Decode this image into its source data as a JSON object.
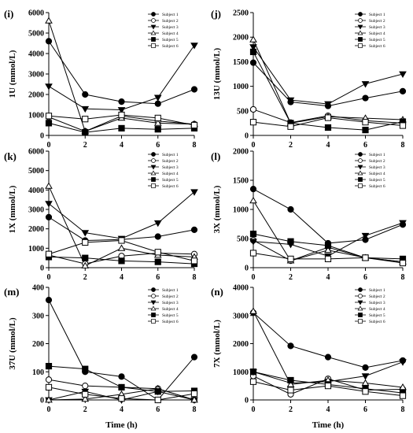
{
  "figure": {
    "x_title": "Time (h)",
    "legend_labels": [
      "Subject 1",
      "Subject 2",
      "Subject 3",
      "Subject 4",
      "Subject 5",
      "Subject 6"
    ],
    "series_markers": [
      "filled-circle",
      "open-circle",
      "filled-triangle-down",
      "open-triangle-up",
      "filled-square",
      "open-square"
    ]
  },
  "chart_data": [
    {
      "type": "line",
      "panel": "(i)",
      "ylabel": "1U (mmol/L)",
      "x": [
        0,
        2,
        4,
        6,
        8
      ],
      "xlim": [
        0,
        8
      ],
      "xticks": [
        0,
        2,
        4,
        6,
        8
      ],
      "ylim": [
        0,
        6000
      ],
      "yticks": [
        0,
        1000,
        2000,
        3000,
        4000,
        5000,
        6000
      ],
      "series": [
        {
          "name": "Subject 1",
          "values": [
            4600,
            2000,
            1650,
            1550,
            2250
          ]
        },
        {
          "name": "Subject 2",
          "values": [
            900,
            200,
            950,
            700,
            550
          ]
        },
        {
          "name": "Subject 3",
          "values": [
            2400,
            1300,
            1250,
            1850,
            4400
          ]
        },
        {
          "name": "Subject 4",
          "values": [
            5600,
            200,
            850,
            600,
            550
          ]
        },
        {
          "name": "Subject 5",
          "values": [
            600,
            150,
            350,
            300,
            350
          ]
        },
        {
          "name": "Subject 6",
          "values": [
            950,
            800,
            1000,
            850,
            500
          ]
        }
      ]
    },
    {
      "type": "line",
      "panel": "(j)",
      "ylabel": "13U (mmol/L)",
      "x": [
        0,
        2,
        4,
        6,
        8
      ],
      "xlim": [
        0,
        8
      ],
      "xticks": [
        0,
        2,
        4,
        6,
        8
      ],
      "ylim": [
        0,
        2500
      ],
      "yticks": [
        0,
        500,
        1000,
        1500,
        2000,
        2500
      ],
      "series": [
        {
          "name": "Subject 1",
          "values": [
            1480,
            680,
            600,
            760,
            900
          ]
        },
        {
          "name": "Subject 2",
          "values": [
            530,
            260,
            400,
            300,
            250
          ]
        },
        {
          "name": "Subject 3",
          "values": [
            1800,
            720,
            640,
            1050,
            1250
          ]
        },
        {
          "name": "Subject 4",
          "values": [
            1950,
            250,
            380,
            350,
            320
          ]
        },
        {
          "name": "Subject 5",
          "values": [
            1700,
            250,
            160,
            110,
            280
          ]
        },
        {
          "name": "Subject 6",
          "values": [
            270,
            180,
            360,
            270,
            200
          ]
        }
      ]
    },
    {
      "type": "line",
      "panel": "(k)",
      "ylabel": "1X (mmol/L)",
      "x": [
        0,
        2,
        4,
        6,
        8
      ],
      "xlim": [
        0,
        8
      ],
      "xticks": [
        0,
        2,
        4,
        6,
        8
      ],
      "ylim": [
        0,
        6000
      ],
      "yticks": [
        0,
        1000,
        2000,
        3000,
        4000,
        5000,
        6000
      ],
      "series": [
        {
          "name": "Subject 1",
          "values": [
            2600,
            1400,
            1450,
            1600,
            1950
          ]
        },
        {
          "name": "Subject 2",
          "values": [
            650,
            200,
            600,
            750,
            700
          ]
        },
        {
          "name": "Subject 3",
          "values": [
            3300,
            1800,
            1500,
            2300,
            3900
          ]
        },
        {
          "name": "Subject 4",
          "values": [
            4200,
            100,
            1000,
            650,
            550
          ]
        },
        {
          "name": "Subject 5",
          "values": [
            550,
            500,
            350,
            300,
            200
          ]
        },
        {
          "name": "Subject 6",
          "values": [
            700,
            1300,
            1400,
            800,
            350
          ]
        }
      ]
    },
    {
      "type": "line",
      "panel": "(l)",
      "ylabel": "3X (mmol/L)",
      "x": [
        0,
        2,
        4,
        6,
        8
      ],
      "xlim": [
        0,
        8
      ],
      "xticks": [
        0,
        2,
        4,
        6,
        8
      ],
      "ylim": [
        0,
        2000
      ],
      "yticks": [
        0,
        500,
        1000,
        1500,
        2000
      ],
      "series": [
        {
          "name": "Subject 1",
          "values": [
            1350,
            1000,
            420,
            480,
            740
          ]
        },
        {
          "name": "Subject 2",
          "values": [
            470,
            120,
            350,
            170,
            100
          ]
        },
        {
          "name": "Subject 3",
          "values": [
            450,
            400,
            200,
            550,
            770
          ]
        },
        {
          "name": "Subject 4",
          "values": [
            1150,
            120,
            300,
            170,
            100
          ]
        },
        {
          "name": "Subject 5",
          "values": [
            580,
            450,
            380,
            170,
            150
          ]
        },
        {
          "name": "Subject 6",
          "values": [
            250,
            150,
            150,
            170,
            80
          ]
        }
      ]
    },
    {
      "type": "line",
      "panel": "(m)",
      "ylabel": "37U (mmol/L)",
      "x": [
        0,
        2,
        4,
        6,
        8
      ],
      "xlim": [
        0,
        8
      ],
      "xticks": [
        0,
        2,
        4,
        6,
        8
      ],
      "ylim": [
        0,
        400
      ],
      "yticks": [
        0,
        100,
        200,
        300,
        400
      ],
      "series": [
        {
          "name": "Subject 1",
          "values": [
            355,
            100,
            83,
            0,
            152
          ]
        },
        {
          "name": "Subject 2",
          "values": [
            72,
            50,
            45,
            40,
            0
          ]
        },
        {
          "name": "Subject 3",
          "values": [
            0,
            30,
            0,
            30,
            0
          ]
        },
        {
          "name": "Subject 4",
          "values": [
            0,
            3,
            20,
            40,
            0
          ]
        },
        {
          "name": "Subject 5",
          "values": [
            120,
            110,
            45,
            30,
            32
          ]
        },
        {
          "name": "Subject 6",
          "values": [
            45,
            20,
            5,
            0,
            22
          ]
        }
      ]
    },
    {
      "type": "line",
      "panel": "(n)",
      "ylabel": "7X (mmol/L)",
      "x": [
        0,
        2,
        4,
        6,
        8
      ],
      "xlim": [
        0,
        8
      ],
      "xticks": [
        0,
        2,
        4,
        6,
        8
      ],
      "ylim": [
        0,
        4000
      ],
      "yticks": [
        0,
        1000,
        2000,
        3000,
        4000
      ],
      "series": [
        {
          "name": "Subject 1",
          "values": [
            3100,
            1920,
            1520,
            1150,
            1400
          ]
        },
        {
          "name": "Subject 2",
          "values": [
            850,
            200,
            750,
            350,
            380
          ]
        },
        {
          "name": "Subject 3",
          "values": [
            1000,
            600,
            650,
            850,
            1350
          ]
        },
        {
          "name": "Subject 4",
          "values": [
            3150,
            550,
            700,
            600,
            450
          ]
        },
        {
          "name": "Subject 5",
          "values": [
            1000,
            700,
            550,
            400,
            250
          ]
        },
        {
          "name": "Subject 6",
          "values": [
            650,
            350,
            500,
            300,
            150
          ]
        }
      ]
    }
  ]
}
